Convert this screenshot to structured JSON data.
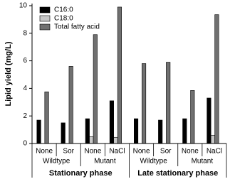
{
  "chart_data": {
    "type": "bar",
    "ylabel": "Lipid yield (mg/L)",
    "categories": [
      "None",
      "Sor",
      "None",
      "NaCl",
      "None",
      "Sor",
      "None",
      "NaCl"
    ],
    "group_labels": [
      "Wildtype",
      "Mutant",
      "Wildtype",
      "Mutant"
    ],
    "phase_labels": [
      "Stationary phase",
      "Late stationary phase"
    ],
    "series": [
      {
        "name": "C16:0",
        "color": "#000000",
        "values": [
          1.7,
          1.5,
          1.8,
          3.1,
          1.8,
          1.7,
          1.8,
          3.3
        ]
      },
      {
        "name": "C18:0",
        "color": "#c8c8c8",
        "values": [
          0,
          0,
          0.5,
          0.45,
          0,
          0,
          0,
          0.6
        ]
      },
      {
        "name": "Total fatty acid",
        "color": "#707070",
        "values": [
          3.75,
          5.6,
          7.9,
          9.9,
          5.8,
          5.9,
          3.85,
          9.35
        ]
      }
    ],
    "ylim": [
      0,
      10
    ],
    "yticks": [
      0,
      2,
      4,
      6,
      8,
      10
    ],
    "legend": "upper-left"
  }
}
